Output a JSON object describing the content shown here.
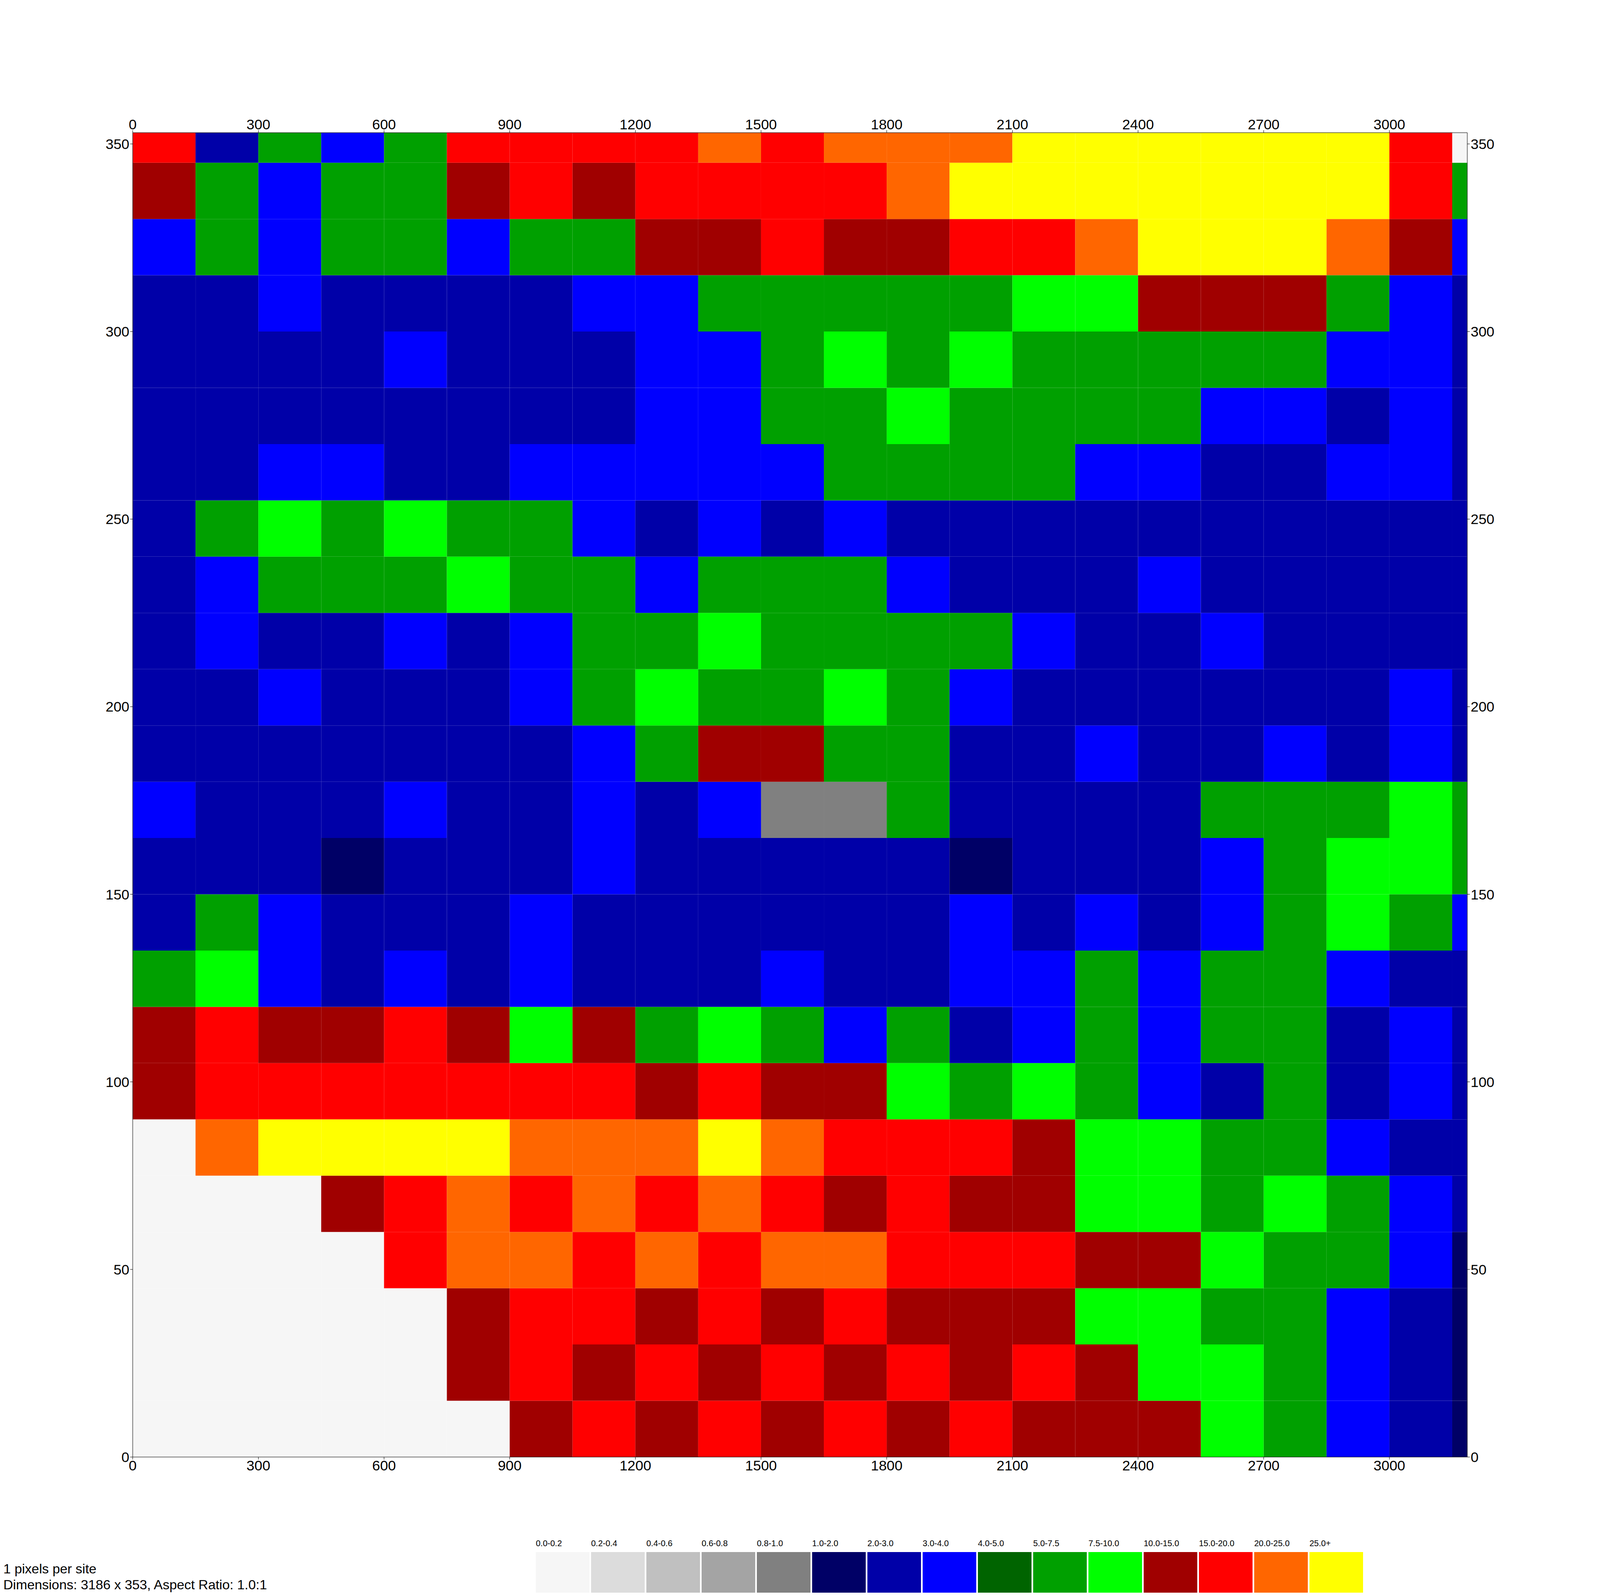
{
  "chart_data": {
    "type": "heatmap",
    "xlim": [
      0,
      3186
    ],
    "ylim": [
      0,
      353
    ],
    "xticks": [
      0,
      300,
      600,
      900,
      1200,
      1500,
      1800,
      2100,
      2400,
      2700,
      3000
    ],
    "yticks": [
      0,
      50,
      100,
      150,
      200,
      250,
      300,
      350
    ],
    "x_edges": [
      0,
      150,
      300,
      450,
      600,
      750,
      900,
      1050,
      1200,
      1350,
      1500,
      1650,
      1800,
      1950,
      2100,
      2250,
      2400,
      2550,
      2700,
      2850,
      3000,
      3150,
      3186
    ],
    "y_edges": [
      0,
      15,
      30,
      45,
      60,
      75,
      90,
      105,
      120,
      135,
      150,
      165,
      180,
      195,
      210,
      225,
      240,
      255,
      270,
      285,
      300,
      315,
      330,
      345,
      353
    ],
    "cells": [
      [
        0.1,
        0.1,
        0.1,
        0.1,
        0.1,
        0.1,
        12,
        17,
        12,
        17,
        12,
        17,
        12,
        17,
        12,
        12,
        12,
        8.5,
        6,
        3.5,
        2.5,
        1.5
      ],
      [
        0.1,
        0.1,
        0.1,
        0.1,
        0.1,
        12,
        17,
        12,
        17,
        12,
        17,
        12,
        17,
        12,
        17,
        12,
        8.5,
        8.5,
        6,
        3.5,
        2.5,
        1.5
      ],
      [
        0.1,
        0.1,
        0.1,
        0.1,
        0.1,
        12,
        17,
        17,
        12,
        17,
        12,
        17,
        12,
        12,
        12,
        8.5,
        8.5,
        6,
        6,
        3.5,
        2.5,
        1.5
      ],
      [
        0.1,
        0.1,
        0.1,
        0.1,
        17,
        22,
        22,
        17,
        22,
        17,
        22,
        22,
        17,
        17,
        17,
        12,
        12,
        8.5,
        6,
        6,
        3.5,
        1.5
      ],
      [
        0.1,
        0.1,
        0.1,
        12,
        17,
        22,
        17,
        22,
        17,
        22,
        17,
        12,
        17,
        12,
        12,
        8.5,
        8.5,
        6,
        8.5,
        6,
        3.5,
        2.5
      ],
      [
        0.1,
        22,
        27,
        27,
        27,
        27,
        22,
        22,
        22,
        27,
        22,
        17,
        17,
        17,
        12,
        8.5,
        8.5,
        6,
        6,
        3.5,
        2.5,
        2.5
      ],
      [
        12,
        17,
        17,
        17,
        17,
        17,
        17,
        17,
        12,
        17,
        12,
        12,
        8.5,
        6,
        8.5,
        6,
        3.5,
        2.5,
        6,
        2.5,
        3.5,
        2.5
      ],
      [
        12,
        17,
        12,
        12,
        17,
        12,
        8.5,
        12,
        6,
        8.5,
        6,
        3.5,
        6,
        2.5,
        3.5,
        6,
        3.5,
        6,
        6,
        2.5,
        3.5,
        2.5
      ],
      [
        6,
        8.5,
        3.5,
        2.5,
        3.5,
        2.5,
        3.5,
        2.5,
        2.5,
        2.5,
        3.5,
        2.5,
        2.5,
        3.5,
        3.5,
        6,
        3.5,
        6,
        6,
        3.5,
        2.5,
        2.5
      ],
      [
        2.5,
        6,
        3.5,
        2.5,
        2.5,
        2.5,
        3.5,
        2.5,
        2.5,
        2.5,
        2.5,
        2.5,
        2.5,
        3.5,
        2.5,
        3.5,
        2.5,
        3.5,
        6,
        8.5,
        6,
        3.5
      ],
      [
        2.5,
        2.5,
        2.5,
        1.5,
        2.5,
        2.5,
        2.5,
        3.5,
        2.5,
        2.5,
        2.5,
        2.5,
        2.5,
        1.5,
        2.5,
        2.5,
        2.5,
        3.5,
        6,
        8.5,
        8.5,
        6
      ],
      [
        3.5,
        2.5,
        2.5,
        2.5,
        3.5,
        2.5,
        2.5,
        3.5,
        2.5,
        3.5,
        0.9,
        0.9,
        6,
        2.5,
        2.5,
        2.5,
        2.5,
        6,
        6,
        6,
        8.5,
        6
      ],
      [
        2.5,
        2.5,
        2.5,
        2.5,
        2.5,
        2.5,
        2.5,
        3.5,
        6,
        12,
        12,
        6,
        6,
        2.5,
        2.5,
        3.5,
        2.5,
        2.5,
        3.5,
        2.5,
        3.5,
        2.5
      ],
      [
        2.5,
        2.5,
        3.5,
        2.5,
        2.5,
        2.5,
        3.5,
        6,
        8.5,
        6,
        6,
        8.5,
        6,
        3.5,
        2.5,
        2.5,
        2.5,
        2.5,
        2.5,
        2.5,
        3.5,
        2.5
      ],
      [
        2.5,
        3.5,
        2.5,
        2.5,
        3.5,
        2.5,
        3.5,
        6,
        6,
        8.5,
        6,
        6,
        6,
        6,
        3.5,
        2.5,
        2.5,
        3.5,
        2.5,
        2.5,
        2.5,
        2.5
      ],
      [
        2.5,
        3.5,
        6,
        6,
        6,
        8.5,
        6,
        6,
        3.5,
        6,
        6,
        6,
        3.5,
        2.5,
        2.5,
        2.5,
        3.5,
        2.5,
        2.5,
        2.5,
        2.5,
        2.5
      ],
      [
        2.5,
        6,
        8.5,
        6,
        8.5,
        6,
        6,
        3.5,
        2.5,
        3.5,
        2.5,
        3.5,
        2.5,
        2.5,
        2.5,
        2.5,
        2.5,
        2.5,
        2.5,
        2.5,
        2.5,
        2.5
      ],
      [
        2.5,
        2.5,
        3.5,
        3.5,
        2.5,
        2.5,
        3.5,
        3.5,
        3.5,
        3.5,
        3.5,
        6,
        6,
        6,
        6,
        3.5,
        3.5,
        2.5,
        2.5,
        3.5,
        3.5,
        2.5
      ],
      [
        2.5,
        2.5,
        2.5,
        2.5,
        2.5,
        2.5,
        2.5,
        2.5,
        3.5,
        3.5,
        6,
        6,
        8.5,
        6,
        6,
        6,
        6,
        3.5,
        3.5,
        2.5,
        3.5,
        2.5
      ],
      [
        2.5,
        2.5,
        2.5,
        2.5,
        3.5,
        2.5,
        2.5,
        2.5,
        3.5,
        3.5,
        6,
        8.5,
        6,
        8.5,
        6,
        6,
        6,
        6,
        6,
        3.5,
        3.5,
        2.5
      ],
      [
        2.5,
        2.5,
        3.5,
        2.5,
        2.5,
        2.5,
        2.5,
        3.5,
        3.5,
        6,
        6,
        6,
        6,
        6,
        8.5,
        8.5,
        12,
        12,
        12,
        6,
        3.5,
        2.5
      ],
      [
        3.5,
        6,
        3.5,
        6,
        6,
        3.5,
        6,
        6,
        12,
        12,
        17,
        12,
        12,
        17,
        17,
        22,
        27,
        27,
        27,
        22,
        12,
        3.5
      ],
      [
        12,
        6,
        3.5,
        6,
        6,
        12,
        17,
        12,
        17,
        17,
        17,
        17,
        22,
        27,
        27,
        27,
        27,
        27,
        27,
        27,
        17,
        6
      ],
      [
        17,
        2.5,
        6,
        3.5,
        6,
        17,
        17,
        17,
        17,
        22,
        17,
        22,
        22,
        22,
        27,
        27,
        27,
        27,
        27,
        27,
        17,
        0.1
      ]
    ],
    "color_scale": {
      "bounds": [
        0,
        0.2,
        0.4,
        0.6,
        0.8,
        1,
        2,
        3,
        4,
        5,
        7.5,
        10,
        15,
        20,
        25
      ],
      "labels": [
        "0.0-0.2",
        "0.2-0.4",
        "0.4-0.6",
        "0.6-0.8",
        "0.8-1.0",
        "1.0-2.0",
        "2.0-3.0",
        "3.0-4.0",
        "4.0-5.0",
        "5.0-7.5",
        "7.5-10.0",
        "10.0-15.0",
        "15.0-20.0",
        "20.0-25.0",
        "25.0+"
      ],
      "colors": [
        "#f6f6f6",
        "#dcdcdc",
        "#c0c0c0",
        "#a4a4a4",
        "#808080",
        "#000066",
        "#0000a8",
        "#0000ff",
        "#006400",
        "#00a000",
        "#00ff00",
        "#a00000",
        "#ff0000",
        "#ff6600",
        "#ffff00"
      ]
    },
    "footer": [
      "1 pixels per site",
      "Dimensions: 3186 x 353, Aspect Ratio: 1.0:1"
    ]
  }
}
